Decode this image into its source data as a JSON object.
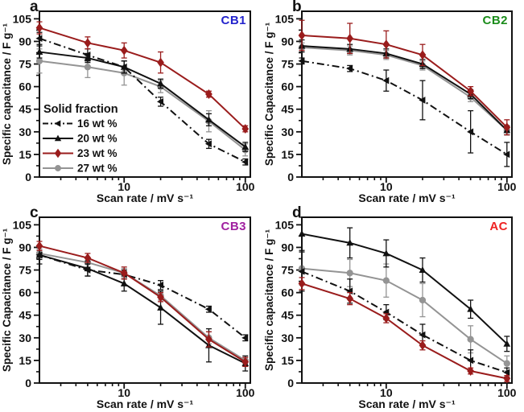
{
  "figure": {
    "xlabel": "Scan rate / mV s⁻¹",
    "background": "#ffffff",
    "axis_color": "#111111"
  },
  "legend": {
    "title": "Solid fraction",
    "entries": [
      "16 wt %",
      "20 wt %",
      "23 wt %",
      "27 wt %"
    ]
  },
  "series_styles": [
    {
      "name": "16 wt %",
      "color": "#111111",
      "marker": "tri-left",
      "line": "dash-dot"
    },
    {
      "name": "20 wt %",
      "color": "#111111",
      "marker": "tri-up",
      "line": "solid"
    },
    {
      "name": "23 wt %",
      "color": "#9a1c1c",
      "marker": "diamond",
      "line": "solid"
    },
    {
      "name": "27 wt %",
      "color": "#949494",
      "marker": "circle",
      "line": "solid"
    }
  ],
  "chart_data": [
    {
      "type": "line",
      "panel": "a",
      "sample": "CB1",
      "sample_color": "#2222cc",
      "ylabel": "Specific capacitance / F g⁻¹",
      "xscale": "log",
      "x": [
        2,
        5,
        10,
        20,
        50,
        100
      ],
      "xlim": [
        2,
        110
      ],
      "ylim": [
        0,
        110
      ],
      "xticks": [
        10,
        100
      ],
      "yticks": [
        0,
        15,
        30,
        45,
        60,
        75,
        90,
        105
      ],
      "show_legend": true,
      "series": [
        {
          "name": "16 wt %",
          "values": [
            92,
            81,
            73,
            50,
            22,
            10
          ],
          "errors": [
            4,
            4,
            4,
            3,
            3,
            2
          ]
        },
        {
          "name": "20 wt %",
          "values": [
            83,
            79,
            73,
            62,
            38,
            20
          ],
          "errors": [
            4,
            3,
            4,
            3,
            4,
            3
          ]
        },
        {
          "name": "23 wt %",
          "values": [
            99,
            89,
            84,
            76,
            55,
            32
          ],
          "errors": [
            4,
            4,
            5,
            7,
            2,
            2
          ]
        },
        {
          "name": "27 wt %",
          "values": [
            77,
            73,
            69,
            60,
            37,
            18
          ],
          "errors": [
            8,
            7,
            8,
            4,
            7,
            4
          ]
        }
      ]
    },
    {
      "type": "line",
      "panel": "b",
      "sample": "CB2",
      "sample_color": "#1a8c1a",
      "ylabel": "Specific Capacitance / F g⁻¹",
      "xscale": "log",
      "x": [
        2,
        5,
        10,
        20,
        50,
        100
      ],
      "xlim": [
        2,
        110
      ],
      "ylim": [
        0,
        110
      ],
      "xticks": [
        10,
        100
      ],
      "yticks": [
        0,
        15,
        30,
        45,
        60,
        75,
        90,
        105
      ],
      "show_legend": false,
      "series": [
        {
          "name": "16 wt %",
          "values": [
            77,
            72,
            64,
            51,
            30,
            15
          ],
          "errors": [
            2,
            2,
            7,
            13,
            14,
            8
          ]
        },
        {
          "name": "20 wt %",
          "values": [
            87,
            85,
            82,
            75,
            55,
            31
          ],
          "errors": [
            4,
            3,
            3,
            3,
            3,
            3
          ]
        },
        {
          "name": "23 wt %",
          "values": [
            94,
            92,
            88,
            81,
            57,
            33
          ],
          "errors": [
            10,
            10,
            9,
            7,
            3,
            5
          ]
        },
        {
          "name": "27 wt %",
          "values": [
            86,
            84,
            81,
            74,
            53,
            31
          ],
          "errors": [
            3,
            3,
            3,
            3,
            3,
            3
          ]
        }
      ]
    },
    {
      "type": "line",
      "panel": "c",
      "sample": "CB3",
      "sample_color": "#a020a0",
      "ylabel": "Specific Capacitance / F g⁻¹",
      "xscale": "log",
      "x": [
        2,
        5,
        10,
        20,
        50,
        100
      ],
      "xlim": [
        2,
        110
      ],
      "ylim": [
        0,
        110
      ],
      "xticks": [
        10,
        100
      ],
      "yticks": [
        0,
        15,
        30,
        45,
        60,
        75,
        90,
        105
      ],
      "show_legend": false,
      "series": [
        {
          "name": "16 wt %",
          "values": [
            85,
            75,
            72,
            65,
            49,
            30
          ],
          "errors": [
            3,
            4,
            3,
            3,
            2,
            2
          ]
        },
        {
          "name": "20 wt %",
          "values": [
            85,
            76,
            66,
            50,
            25,
            13
          ],
          "errors": [
            6,
            5,
            5,
            11,
            11,
            5
          ]
        },
        {
          "name": "23 wt %",
          "values": [
            91,
            83,
            73,
            57,
            29,
            14
          ],
          "errors": [
            3,
            3,
            4,
            3,
            5,
            3
          ]
        },
        {
          "name": "27 wt %",
          "values": [
            86,
            80,
            73,
            58,
            30,
            15
          ],
          "errors": [
            3,
            3,
            3,
            3,
            4,
            2
          ]
        }
      ]
    },
    {
      "type": "line",
      "panel": "d",
      "sample": "AC",
      "sample_color": "#ee2222",
      "ylabel": "Specific capacitance / F g⁻¹",
      "xscale": "log",
      "x": [
        2,
        5,
        10,
        20,
        50,
        100
      ],
      "xlim": [
        2,
        110
      ],
      "ylim": [
        0,
        110
      ],
      "xticks": [
        10,
        100
      ],
      "yticks": [
        0,
        15,
        30,
        45,
        60,
        75,
        90,
        105
      ],
      "show_legend": false,
      "series": [
        {
          "name": "16 wt %",
          "values": [
            74,
            61,
            47,
            32,
            15,
            7
          ],
          "errors": [
            13,
            8,
            5,
            7,
            7,
            3
          ]
        },
        {
          "name": "20 wt %",
          "values": [
            99,
            93,
            86,
            75,
            49,
            26
          ],
          "errors": [
            11,
            10,
            9,
            8,
            6,
            5
          ]
        },
        {
          "name": "23 wt %",
          "values": [
            66,
            56,
            43,
            25,
            8,
            3
          ],
          "errors": [
            4,
            4,
            3,
            3,
            2,
            2
          ]
        },
        {
          "name": "27 wt %",
          "values": [
            76,
            73,
            68,
            55,
            29,
            13
          ],
          "errors": [
            11,
            9,
            11,
            11,
            9,
            5
          ]
        }
      ]
    }
  ]
}
